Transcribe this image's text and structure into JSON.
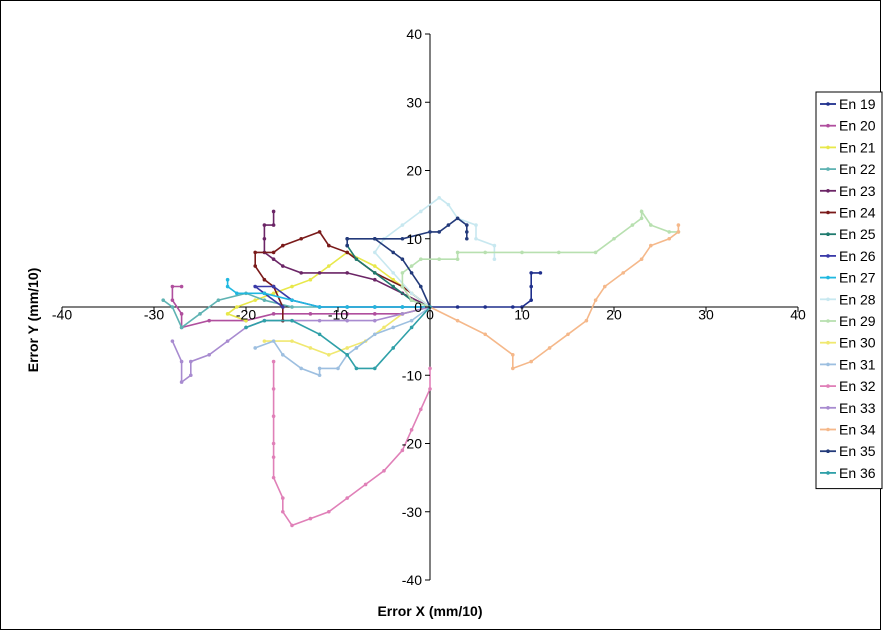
{
  "chart_data": {
    "type": "line",
    "xlabel": "Error X (mm/10)",
    "ylabel": "Error Y (mm/10)",
    "xlim": [
      -40,
      40
    ],
    "ylim": [
      -40,
      40
    ],
    "xticks": [
      -40,
      -30,
      -20,
      -10,
      0,
      10,
      20,
      30,
      40
    ],
    "yticks": [
      -40,
      -30,
      -20,
      -10,
      0,
      10,
      20,
      30,
      40
    ],
    "xtick_labels": [
      "-40",
      "-30",
      "-20",
      "-10",
      "0",
      "10",
      "20",
      "30",
      "40"
    ],
    "ytick_labels": [
      "-40",
      "-30",
      "-20",
      "-10",
      "0",
      "10",
      "20",
      "30",
      "40"
    ],
    "legend_position": "right",
    "grid": false,
    "series": [
      {
        "name": "En 19",
        "color": "#1f2f8c",
        "points": [
          [
            0,
            0
          ],
          [
            3,
            0
          ],
          [
            6,
            0
          ],
          [
            9,
            0
          ],
          [
            10,
            0
          ],
          [
            11,
            1
          ],
          [
            11,
            3
          ],
          [
            11,
            5
          ],
          [
            12,
            5
          ]
        ]
      },
      {
        "name": "En 20",
        "color": "#b04f9e",
        "points": [
          [
            0,
            0
          ],
          [
            -3,
            -1
          ],
          [
            -6,
            -1
          ],
          [
            -9,
            -1
          ],
          [
            -13,
            -1
          ],
          [
            -17,
            -1
          ],
          [
            -20,
            -2
          ],
          [
            -24,
            -2
          ],
          [
            -27,
            -3
          ],
          [
            -27,
            -1
          ],
          [
            -28,
            1
          ],
          [
            -28,
            3
          ],
          [
            -27,
            3
          ]
        ]
      },
      {
        "name": "En 21",
        "color": "#e8e84a",
        "points": [
          [
            0,
            0
          ],
          [
            -2,
            2
          ],
          [
            -4,
            4
          ],
          [
            -6,
            6
          ],
          [
            -9,
            8
          ],
          [
            -11,
            6
          ],
          [
            -13,
            4
          ],
          [
            -15,
            3
          ],
          [
            -17,
            2
          ],
          [
            -19,
            1
          ],
          [
            -21,
            0
          ],
          [
            -22,
            -1
          ],
          [
            -20,
            -2
          ]
        ]
      },
      {
        "name": "En 22",
        "color": "#5fb3b3",
        "points": [
          [
            0,
            0
          ],
          [
            -3,
            0
          ],
          [
            -6,
            0
          ],
          [
            -9,
            0
          ],
          [
            -12,
            0
          ],
          [
            -15,
            0
          ],
          [
            -18,
            1
          ],
          [
            -20,
            2
          ],
          [
            -23,
            1
          ],
          [
            -25,
            -1
          ],
          [
            -27,
            -3
          ],
          [
            -28,
            0
          ],
          [
            -29,
            1
          ]
        ]
      },
      {
        "name": "En 23",
        "color": "#6b2566",
        "points": [
          [
            0,
            0
          ],
          [
            -3,
            2
          ],
          [
            -6,
            4
          ],
          [
            -9,
            5
          ],
          [
            -12,
            5
          ],
          [
            -14,
            5
          ],
          [
            -16,
            6
          ],
          [
            -17,
            7
          ],
          [
            -18,
            8
          ],
          [
            -18,
            10
          ],
          [
            -18,
            12
          ],
          [
            -17,
            12
          ],
          [
            -17,
            14
          ]
        ]
      },
      {
        "name": "En 24",
        "color": "#7a1a1a",
        "points": [
          [
            0,
            0
          ],
          [
            -3,
            3
          ],
          [
            -6,
            5
          ],
          [
            -9,
            8
          ],
          [
            -11,
            9
          ],
          [
            -12,
            11
          ],
          [
            -14,
            10
          ],
          [
            -16,
            9
          ],
          [
            -17,
            8
          ],
          [
            -19,
            8
          ],
          [
            -19,
            6
          ],
          [
            -18,
            4
          ],
          [
            -17,
            3
          ],
          [
            -16,
            0
          ],
          [
            -16,
            -2
          ]
        ]
      },
      {
        "name": "En 25",
        "color": "#1f7a6e",
        "points": [
          [
            0,
            0
          ],
          [
            -2,
            1
          ],
          [
            -4,
            3
          ],
          [
            -6,
            5
          ],
          [
            -8,
            7
          ],
          [
            -9,
            9
          ]
        ]
      },
      {
        "name": "En 26",
        "color": "#3a3aa8",
        "points": [
          [
            0,
            0
          ],
          [
            -3,
            0
          ],
          [
            -6,
            0
          ],
          [
            -9,
            0
          ],
          [
            -12,
            0
          ],
          [
            -15,
            1
          ],
          [
            -17,
            3
          ],
          [
            -19,
            3
          ],
          [
            -18,
            2
          ],
          [
            -16,
            0
          ]
        ]
      },
      {
        "name": "En 27",
        "color": "#20b8e0",
        "points": [
          [
            0,
            0
          ],
          [
            -3,
            0
          ],
          [
            -6,
            0
          ],
          [
            -9,
            0
          ],
          [
            -12,
            0
          ],
          [
            -15,
            1
          ],
          [
            -18,
            2
          ],
          [
            -21,
            2
          ],
          [
            -22,
            3
          ],
          [
            -22,
            4
          ]
        ]
      },
      {
        "name": "En 28",
        "color": "#c8e8f0",
        "points": [
          [
            0,
            0
          ],
          [
            -2,
            2
          ],
          [
            -4,
            5
          ],
          [
            -6,
            8
          ],
          [
            -5,
            10
          ],
          [
            -3,
            12
          ],
          [
            -1,
            14
          ],
          [
            1,
            16
          ],
          [
            2,
            15
          ],
          [
            3,
            13
          ],
          [
            5,
            12
          ],
          [
            5,
            10
          ],
          [
            7,
            9
          ],
          [
            7,
            7
          ]
        ]
      },
      {
        "name": "En 29",
        "color": "#b8e0b0",
        "points": [
          [
            0,
            0
          ],
          [
            -2,
            1
          ],
          [
            -3,
            3
          ],
          [
            -3,
            5
          ],
          [
            -2,
            6
          ],
          [
            -1,
            7
          ],
          [
            1,
            7
          ],
          [
            3,
            7
          ],
          [
            3,
            8
          ],
          [
            6,
            8
          ],
          [
            10,
            8
          ],
          [
            14,
            8
          ],
          [
            18,
            8
          ],
          [
            20,
            10
          ],
          [
            22,
            12
          ],
          [
            23,
            13
          ],
          [
            23,
            14
          ],
          [
            24,
            12
          ],
          [
            26,
            11
          ],
          [
            27,
            11
          ]
        ]
      },
      {
        "name": "En 30",
        "color": "#f0e870",
        "points": [
          [
            0,
            0
          ],
          [
            -3,
            -1
          ],
          [
            -5,
            -3
          ],
          [
            -7,
            -5
          ],
          [
            -9,
            -6
          ],
          [
            -11,
            -7
          ],
          [
            -13,
            -6
          ],
          [
            -15,
            -5
          ],
          [
            -18,
            -5
          ]
        ]
      },
      {
        "name": "En 31",
        "color": "#9dbfe0",
        "points": [
          [
            0,
            0
          ],
          [
            -2,
            -2
          ],
          [
            -4,
            -3
          ],
          [
            -6,
            -4
          ],
          [
            -8,
            -6
          ],
          [
            -9,
            -7
          ],
          [
            -10,
            -9
          ],
          [
            -12,
            -9
          ],
          [
            -12,
            -10
          ],
          [
            -14,
            -9
          ],
          [
            -16,
            -7
          ],
          [
            -17,
            -5
          ],
          [
            -19,
            -6
          ]
        ]
      },
      {
        "name": "En 32",
        "color": "#e080b8",
        "points": [
          [
            0,
            -9
          ],
          [
            0,
            -12
          ],
          [
            -1,
            -15
          ],
          [
            -2,
            -18
          ],
          [
            -3,
            -21
          ],
          [
            -5,
            -24
          ],
          [
            -7,
            -26
          ],
          [
            -9,
            -28
          ],
          [
            -11,
            -30
          ],
          [
            -13,
            -31
          ],
          [
            -15,
            -32
          ],
          [
            -16,
            -30
          ],
          [
            -16,
            -28
          ],
          [
            -17,
            -25
          ],
          [
            -17,
            -22
          ],
          [
            -17,
            -20
          ],
          [
            -17,
            -16
          ],
          [
            -17,
            -12
          ],
          [
            -17,
            -8
          ]
        ]
      },
      {
        "name": "En 33",
        "color": "#a88bd0",
        "points": [
          [
            0,
            0
          ],
          [
            -3,
            -1
          ],
          [
            -6,
            -2
          ],
          [
            -9,
            -2
          ],
          [
            -12,
            -2
          ],
          [
            -15,
            -2
          ],
          [
            -18,
            -2
          ],
          [
            -20,
            -3
          ],
          [
            -22,
            -5
          ],
          [
            -24,
            -7
          ],
          [
            -26,
            -8
          ],
          [
            -26,
            -10
          ],
          [
            -27,
            -11
          ],
          [
            -27,
            -8
          ],
          [
            -28,
            -5
          ]
        ]
      },
      {
        "name": "En 34",
        "color": "#f5b88a",
        "points": [
          [
            0,
            0
          ],
          [
            3,
            -2
          ],
          [
            6,
            -4
          ],
          [
            9,
            -7
          ],
          [
            9,
            -9
          ],
          [
            11,
            -8
          ],
          [
            13,
            -6
          ],
          [
            15,
            -4
          ],
          [
            17,
            -2
          ],
          [
            18,
            1
          ],
          [
            19,
            3
          ],
          [
            21,
            5
          ],
          [
            23,
            7
          ],
          [
            24,
            9
          ],
          [
            26,
            10
          ],
          [
            27,
            11
          ],
          [
            27,
            12
          ]
        ]
      },
      {
        "name": "En 35",
        "color": "#233a7a",
        "points": [
          [
            0,
            0
          ],
          [
            -1,
            3
          ],
          [
            -2,
            5
          ],
          [
            -3,
            7
          ],
          [
            -4,
            8
          ],
          [
            -6,
            10
          ],
          [
            -9,
            10
          ],
          [
            -9,
            9
          ],
          [
            -9,
            10
          ],
          [
            -6,
            10
          ],
          [
            -3,
            10
          ],
          [
            0,
            11
          ],
          [
            1,
            11
          ],
          [
            2,
            12
          ],
          [
            3,
            13
          ],
          [
            4,
            12
          ],
          [
            4,
            10
          ],
          [
            4,
            11
          ]
        ]
      },
      {
        "name": "En 36",
        "color": "#2fa0a8",
        "points": [
          [
            0,
            0
          ],
          [
            -2,
            -3
          ],
          [
            -4,
            -6
          ],
          [
            -6,
            -9
          ],
          [
            -8,
            -9
          ],
          [
            -9,
            -7
          ],
          [
            -12,
            -4
          ],
          [
            -15,
            -2
          ],
          [
            -18,
            -2
          ],
          [
            -20,
            -3
          ]
        ]
      }
    ]
  }
}
